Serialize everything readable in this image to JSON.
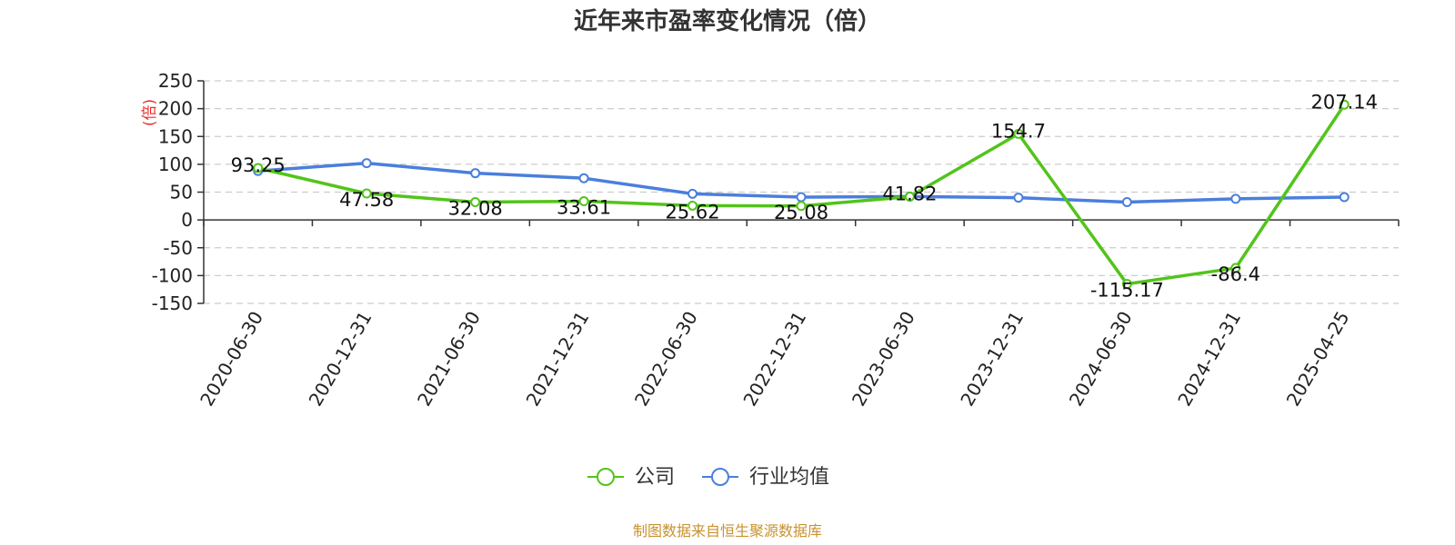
{
  "chart_data": {
    "type": "line",
    "title": "近年来市盈率变化情况（倍）",
    "ylabel": "(倍)",
    "xlabel": "",
    "categories": [
      "2020-06-30",
      "2020-12-31",
      "2021-06-30",
      "2021-12-31",
      "2022-06-30",
      "2022-12-31",
      "2023-06-30",
      "2023-12-31",
      "2024-06-30",
      "2024-12-31",
      "2025-04-25"
    ],
    "ylim": [
      -150,
      250
    ],
    "yticks": [
      250,
      200,
      150,
      100,
      50,
      0,
      -50,
      -100,
      -150
    ],
    "grid": true,
    "legend_position": "bottom",
    "series": [
      {
        "name": "公司",
        "color": "#52c41a",
        "values": [
          93.25,
          47.58,
          32.08,
          33.61,
          25.62,
          25.08,
          41.82,
          154.7,
          -115.17,
          -86.4,
          207.14
        ],
        "labels": [
          "93.25",
          "47.58",
          "32.08",
          "33.61",
          "25.62",
          "25.08",
          "41.82",
          "154.7",
          "-115.17",
          "-86.4",
          "207.14"
        ]
      },
      {
        "name": "行业均值",
        "color": "#4a7fdc",
        "values": [
          88,
          102,
          84,
          75,
          47,
          41,
          42,
          40,
          32,
          38,
          41
        ]
      }
    ],
    "source": "制图数据来自恒生聚源数据库"
  },
  "colors": {
    "ylabel": "#e8302a",
    "source": "#c8922e",
    "grid": "#cccccc",
    "axis": "#333333"
  }
}
